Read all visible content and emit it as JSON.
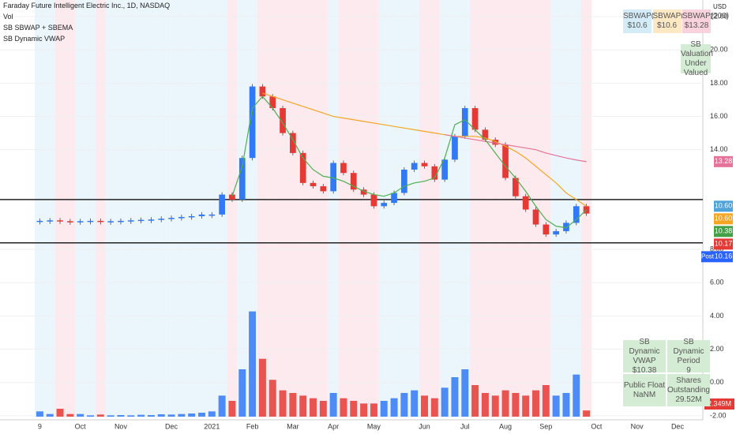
{
  "header": {
    "title": "Faraday Future Intelligent Electric Inc., 1D, NASDAQ",
    "indicators": [
      "Vol",
      "SB SBWAP + SBEMA",
      "SB Dynamic VWAP"
    ],
    "currency": "USD"
  },
  "info_boxes": [
    {
      "label": "SBWAP(20)",
      "value": "$10.6",
      "color": "#d4ecf7"
    },
    {
      "label": "SBWAP(50)",
      "value": "$10.6",
      "color": "#fce8c3"
    },
    {
      "label": "SBWAP(200)",
      "value": "$13.28",
      "color": "#f8d2dd"
    }
  ],
  "valuation": {
    "label": "SB Valuation",
    "value": "Under Valued"
  },
  "dynamic_table": [
    {
      "label": "SB Dynamic VWAP",
      "value": "$10.38"
    },
    {
      "label": "SB Dynamic Period",
      "value": "9"
    },
    {
      "label": "Public Float",
      "value": "NaNM"
    },
    {
      "label": "Shares Outstanding",
      "value": "29.52M"
    }
  ],
  "chart_data": {
    "type": "candlestick",
    "categories": [
      "9",
      null,
      null,
      null,
      "Oct",
      null,
      null,
      null,
      "Nov",
      null,
      null,
      null,
      null,
      "Dec",
      null,
      null,
      null,
      "2021",
      null,
      null,
      null,
      "Feb",
      null,
      null,
      null,
      "Mar",
      null,
      null,
      null,
      "Apr",
      null,
      null,
      null,
      "May",
      null,
      null,
      null,
      null,
      "Jun",
      null,
      null,
      null,
      "Jul",
      null,
      null,
      null,
      "Aug",
      null,
      null,
      null,
      "Sep",
      null,
      null,
      null,
      null,
      "Oct",
      null,
      null,
      null,
      "Nov",
      null,
      null,
      null,
      "Dec",
      null,
      null
    ],
    "series": [
      {
        "style": "candle",
        "up_color": "#3179f5",
        "down_color": "#e53935",
        "values": [
          9.72,
          9.75,
          9.7,
          9.68,
          9.7,
          9.72,
          9.7,
          9.7,
          9.72,
          9.75,
          9.78,
          9.8,
          9.85,
          9.9,
          9.95,
          10.0,
          10.1,
          10.1,
          11.3,
          11.0,
          13.5,
          17.8,
          17.2,
          16.5,
          15.0,
          13.8,
          12.0,
          11.8,
          11.5,
          13.2,
          12.6,
          11.6,
          11.3,
          10.6,
          10.8,
          11.4,
          12.8,
          13.2,
          13.0,
          12.2,
          13.4,
          14.8,
          16.5,
          15.2,
          14.6,
          14.3,
          12.3,
          11.2,
          10.4,
          9.5,
          8.9,
          9.1,
          9.6,
          10.6,
          10.16,
          null,
          null,
          null,
          null,
          null,
          null,
          null,
          null,
          null,
          null,
          null
        ]
      },
      {
        "style": "bar",
        "axis": "y2",
        "up_color": "#3179f5",
        "down_color": "#e53935",
        "values": [
          2,
          1,
          3,
          1,
          1,
          0.5,
          0.8,
          0.5,
          0.6,
          0.5,
          0.7,
          0.6,
          0.9,
          0.8,
          1,
          1.2,
          1.5,
          2,
          8,
          6,
          18,
          40,
          22,
          14,
          10,
          9,
          8,
          7,
          6,
          9,
          7,
          6,
          5,
          5,
          6,
          7,
          9,
          10,
          8,
          7,
          11,
          15,
          18,
          12,
          9,
          8,
          10,
          9,
          8,
          10,
          12,
          8,
          9,
          16,
          2.349,
          null,
          null,
          null,
          null,
          null,
          null,
          null,
          null,
          null,
          null,
          null
        ],
        "last_label": "2.349M"
      },
      {
        "style": "line",
        "color": "#f5a623",
        "values": [
          null,
          null,
          null,
          null,
          null,
          null,
          null,
          null,
          null,
          null,
          null,
          null,
          null,
          null,
          null,
          null,
          null,
          null,
          null,
          null,
          null,
          null,
          17.4,
          17.2,
          17.0,
          16.8,
          16.6,
          16.4,
          16.2,
          16.0,
          15.9,
          15.8,
          15.7,
          15.6,
          15.5,
          15.4,
          15.3,
          15.2,
          15.1,
          15.0,
          14.9,
          14.8,
          14.8,
          14.8,
          14.7,
          14.5,
          14.2,
          13.9,
          13.5,
          13.0,
          12.5,
          12.0,
          11.4,
          11.0,
          10.6,
          null,
          null,
          null,
          null,
          null,
          null,
          null,
          null,
          null,
          null,
          null
        ]
      },
      {
        "style": "line",
        "color": "#e57399",
        "values": [
          null,
          null,
          null,
          null,
          null,
          null,
          null,
          null,
          null,
          null,
          null,
          null,
          null,
          null,
          null,
          null,
          null,
          null,
          null,
          null,
          null,
          null,
          null,
          null,
          null,
          null,
          null,
          null,
          null,
          null,
          null,
          null,
          null,
          null,
          null,
          null,
          null,
          null,
          null,
          null,
          14.9,
          14.8,
          14.7,
          14.6,
          14.5,
          14.4,
          14.3,
          14.2,
          14.1,
          14.0,
          13.8,
          13.65,
          13.5,
          13.38,
          13.28,
          null,
          null,
          null,
          null,
          null,
          null,
          null,
          null,
          null,
          null,
          null
        ]
      },
      {
        "style": "line",
        "color": "#4caf50",
        "values": [
          null,
          null,
          null,
          null,
          null,
          null,
          null,
          null,
          null,
          null,
          null,
          null,
          null,
          null,
          null,
          null,
          null,
          null,
          null,
          11.2,
          13.0,
          16.5,
          17.2,
          16.5,
          15.6,
          14.6,
          13.5,
          12.8,
          12.4,
          12.3,
          12.1,
          11.8,
          11.5,
          11.3,
          11.2,
          11.4,
          11.8,
          12.0,
          12.1,
          12.3,
          13.5,
          15.5,
          15.8,
          15.2,
          14.6,
          13.8,
          13.0,
          12.3,
          11.5,
          10.6,
          9.8,
          9.4,
          9.3,
          9.8,
          10.38,
          null,
          null,
          null,
          null,
          null,
          null,
          null,
          null,
          null,
          null,
          null
        ]
      }
    ],
    "ylim": [
      -2.1,
      23
    ],
    "yticks": [
      {
        "value": 22,
        "label": "22.00"
      },
      {
        "value": 20,
        "label": "20.00"
      },
      {
        "value": 18,
        "label": "18.00"
      },
      {
        "value": 16,
        "label": "16.00"
      },
      {
        "value": 14,
        "label": "14.00"
      },
      {
        "value": 8,
        "label": "8.00"
      },
      {
        "value": 6,
        "label": "6.00"
      },
      {
        "value": 4,
        "label": "4.00"
      },
      {
        "value": 2,
        "label": "2.00"
      },
      {
        "value": 0,
        "label": "0.00"
      },
      {
        "value": -2,
        "label": "-2.00"
      }
    ],
    "y2lim": [
      0,
      45
    ],
    "grid": true,
    "hlines": [
      11.0,
      8.4
    ],
    "price_labels": [
      {
        "value": 13.28,
        "label": "13.28",
        "color": "#e57399"
      },
      {
        "value": 10.6,
        "label": "10.60",
        "color": "#4fa3d9"
      },
      {
        "value": 10.6,
        "label": "10.60",
        "color": "#f5a623"
      },
      {
        "value": 10.38,
        "label": "10.38",
        "color": "#43a047"
      },
      {
        "value": 10.17,
        "label": "10.17",
        "color": "#e53935"
      },
      {
        "value": 10.16,
        "label": "10.16",
        "color": "#2962ff",
        "tag": "Post"
      }
    ]
  }
}
